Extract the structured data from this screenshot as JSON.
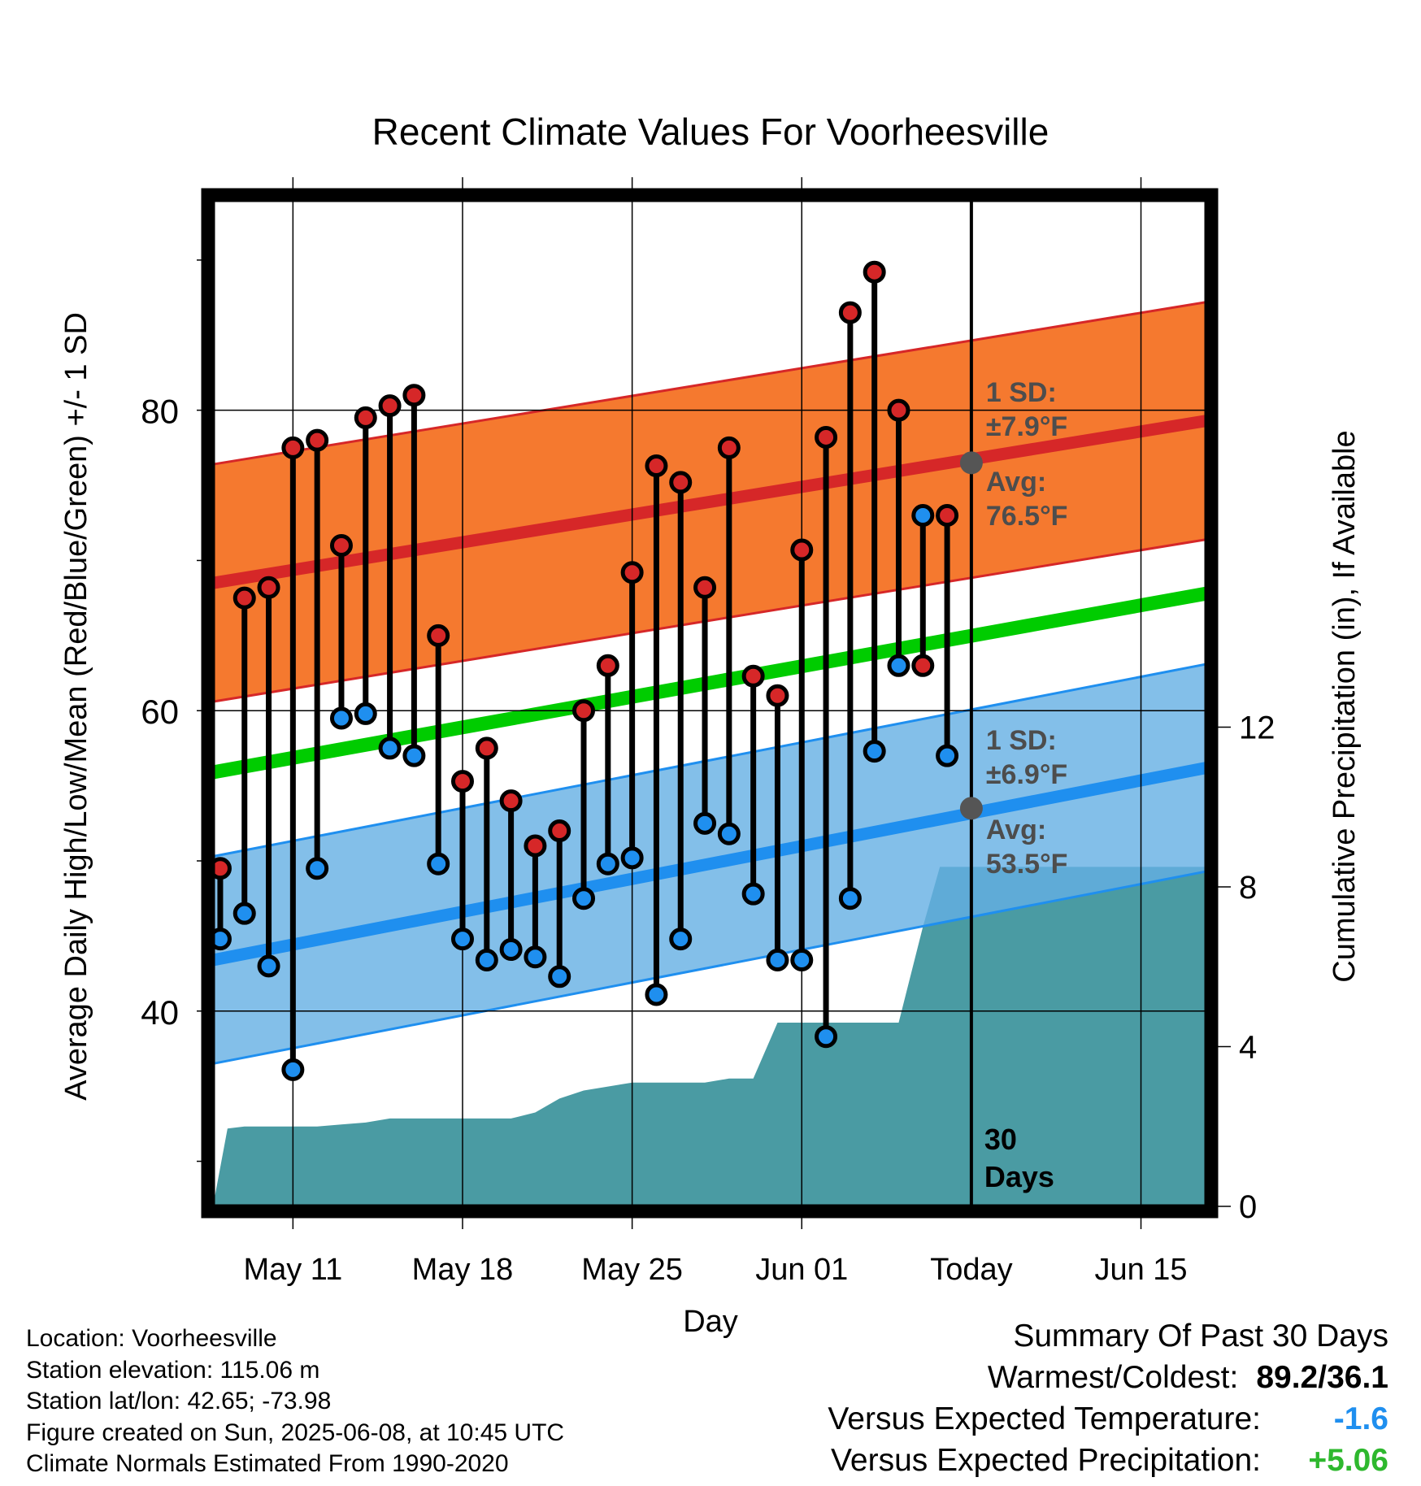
{
  "chart_data": {
    "type": "line",
    "title": "Recent Climate Values For Voorheesville",
    "xlabel": "Day",
    "ylabel_left": "Average Daily High/Low/Mean (Red/Blue/Green) +/- 1 SD",
    "ylabel_right": "Cumulative Precipitation (in), If Available",
    "x_ticks": [
      {
        "day": 11,
        "label": "May 11"
      },
      {
        "day": 18,
        "label": "May 18"
      },
      {
        "day": 25,
        "label": "May 25"
      },
      {
        "day": 32,
        "label": "Jun 01"
      },
      {
        "day": 39,
        "label": "Today"
      },
      {
        "day": 46,
        "label": "Jun 15"
      }
    ],
    "xlim": [
      7.7,
      48.7
    ],
    "ylim_left": [
      27,
      94
    ],
    "y_ticks_left": [
      40,
      60,
      80
    ],
    "ylim_right": [
      0,
      25.2
    ],
    "y_ticks_right": [
      0,
      4,
      8,
      12
    ],
    "normal_high": {
      "start": 68.5,
      "end": 79.3,
      "sd": 7.9,
      "avg_today": 76.5,
      "sd_label": "1 SD:",
      "sd_text": "±7.9°F",
      "avg_label": "Avg:",
      "avg_text": "76.5°F"
    },
    "normal_low": {
      "start": 43.4,
      "end": 56.2,
      "sd": 6.9,
      "avg_today": 53.5,
      "sd_label": "1 SD:",
      "sd_text": "±6.9°F",
      "avg_label": "Avg:",
      "avg_text": "53.5°F"
    },
    "normal_mean": {
      "start": 55.9,
      "end": 67.8
    },
    "series": [
      {
        "name": "High",
        "color": "#d62728",
        "days": [
          8,
          9,
          10,
          11,
          12,
          13,
          14,
          15,
          16,
          17,
          18,
          19,
          20,
          21,
          22,
          23,
          24,
          25,
          26,
          27,
          28,
          29,
          30,
          31,
          32,
          33,
          34,
          35,
          36,
          37,
          38
        ],
        "values": [
          49.5,
          67.5,
          68.2,
          77.5,
          78,
          71,
          79.5,
          80.3,
          81,
          65,
          55.3,
          57.5,
          54,
          51,
          52,
          60,
          63,
          69.2,
          76.3,
          75.2,
          68.2,
          77.5,
          62.3,
          61,
          70.7,
          78.2,
          86.5,
          89.2,
          80,
          63,
          73
        ]
      },
      {
        "name": "Low",
        "color": "#1f8fef",
        "days": [
          8,
          9,
          10,
          11,
          12,
          13,
          14,
          15,
          16,
          17,
          18,
          19,
          20,
          21,
          22,
          23,
          24,
          25,
          26,
          27,
          28,
          29,
          30,
          31,
          32,
          33,
          34,
          35,
          36,
          37,
          38
        ],
        "values": [
          44.8,
          46.5,
          43,
          36.1,
          49.5,
          59.5,
          59.8,
          57.5,
          57,
          49.8,
          44.8,
          43.4,
          44.1,
          43.6,
          42.3,
          47.5,
          49.8,
          50.2,
          41.1,
          44.8,
          52.5,
          51.8,
          47.8,
          43.4,
          43.4,
          38.3,
          47.5,
          57.3,
          63,
          73,
          57
        ]
      },
      {
        "name": "Precipitation",
        "color": "#4a9ba3",
        "days": [
          7.7,
          8.3,
          9,
          10,
          11,
          12,
          13,
          14,
          15,
          16,
          17,
          18,
          19,
          20,
          21,
          22,
          23,
          24,
          25,
          26,
          27,
          28,
          29,
          30,
          31,
          32,
          33,
          34,
          35,
          36,
          37,
          37.7,
          38.3,
          48.7
        ],
        "values": [
          0,
          1.95,
          2,
          2,
          2,
          2,
          2.05,
          2.1,
          2.2,
          2.2,
          2.2,
          2.2,
          2.2,
          2.2,
          2.35,
          2.7,
          2.9,
          3.0,
          3.1,
          3.1,
          3.1,
          3.1,
          3.2,
          3.2,
          4.6,
          4.6,
          4.6,
          4.6,
          4.6,
          4.6,
          7.0,
          8.5,
          8.5,
          8.5
        ]
      }
    ],
    "annotation": "30\nDays",
    "grid": true
  },
  "metadata": {
    "location": "Location: Voorheesville",
    "elevation": "Station elevation: 115.06 m",
    "latlon": "Station lat/lon: 42.65; -73.98",
    "created": "Figure created on Sun, 2025-06-08, at 10:45 UTC",
    "normals": "Climate Normals Estimated From 1990-2020"
  },
  "summary": {
    "title": "Summary Of Past 30 Days",
    "warmest_coldest_label": "Warmest/Coldest:",
    "warmest_coldest_value": "89.2/36.1",
    "temp_label": "Versus Expected Temperature:",
    "temp_value": "-1.6",
    "temp_color": "#1f8fef",
    "precip_label": "Versus Expected Precipitation:",
    "precip_value": "+5.06",
    "precip_color": "#2eb82e"
  }
}
